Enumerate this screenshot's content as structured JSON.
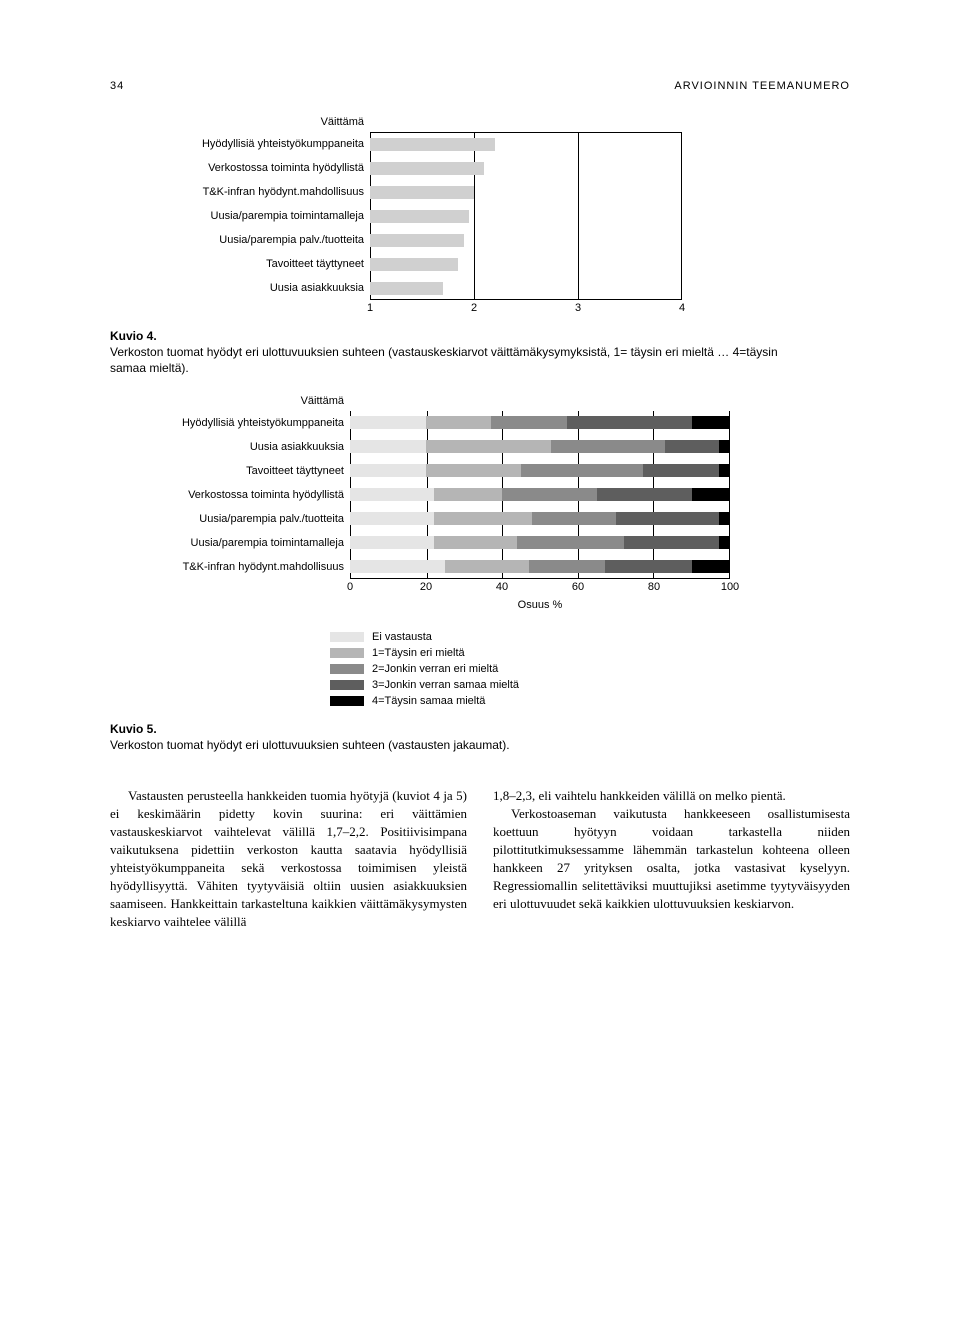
{
  "page_number": "34",
  "running_head": "ARVIOINNIN TEEMANUMERO",
  "kuvio4": {
    "type": "bar",
    "header_label": "Väittämä",
    "categories": [
      "Hyödyllisiä yhteistyökumppaneita",
      "Verkostossa toiminta hyödyllistä",
      "T&K-infran hyödynt.mahdollisuus",
      "Uusia/parempia toimintamalleja",
      "Uusia/parempia palv./tuotteita",
      "Tavoitteet täyttyneet",
      "Uusia asiakkuuksia"
    ],
    "values": [
      2.2,
      2.1,
      2.0,
      1.95,
      1.9,
      1.85,
      1.7
    ],
    "xlim": [
      1,
      4
    ],
    "xticks": [
      1,
      2,
      3,
      4
    ],
    "bar_color": "#d0d0d0",
    "grid_color": "#000000",
    "caption_label": "Kuvio 4.",
    "caption_text": "Verkoston tuomat hyödyt eri ulottuvuuksien suhteen (vastauskeskiarvot väittämäkysymyksistä, 1= täysin eri mieltä … 4=täysin samaa mieltä)."
  },
  "kuvio5": {
    "type": "stacked_bar",
    "header_label": "Väittämä",
    "categories": [
      "Hyödyllisiä yhteistyökumppaneita",
      "Uusia asiakkuuksia",
      "Tavoitteet täyttyneet",
      "Verkostossa toiminta hyödyllistä",
      "Uusia/parempia palv./tuotteita",
      "Uusia/parempia toimintamalleja",
      "T&K-infran hyödynt.mahdollisuus"
    ],
    "segments": [
      [
        20,
        17,
        20,
        33,
        10
      ],
      [
        20,
        33,
        30,
        14,
        3
      ],
      [
        20,
        25,
        32,
        20,
        3
      ],
      [
        22,
        18,
        25,
        25,
        10
      ],
      [
        22,
        26,
        22,
        27,
        3
      ],
      [
        22,
        22,
        28,
        25,
        3
      ],
      [
        25,
        22,
        20,
        23,
        10
      ]
    ],
    "seg_colors": [
      "#e5e5e5",
      "#b5b5b5",
      "#8a8a8a",
      "#5e5e5e",
      "#000000"
    ],
    "xlim": [
      0,
      100
    ],
    "xticks": [
      0,
      20,
      40,
      60,
      80,
      100
    ],
    "xlabel": "Osuus %",
    "legend": [
      "Ei vastausta",
      "1=Täysin eri mieltä",
      "2=Jonkin verran eri mieltä",
      "3=Jonkin verran samaa mieltä",
      "4=Täysin samaa mieltä"
    ],
    "caption_label": "Kuvio 5.",
    "caption_text": "Verkoston tuomat hyödyt eri ulottuvuuksien suhteen (vastausten jakaumat)."
  },
  "body_left": "Vastausten perusteella hankkeiden tuomia hyötyjä (kuviot 4 ja 5) ei keskimäärin pidetty kovin suurina: eri väittämien vastauskeskiarvot vaihtelevat välillä 1,7–2,2. Positiivisimpana vaikutuksena pidettiin verkoston kautta saatavia hyödyllisiä yhteistyökumppaneita sekä verkostossa toimimisen yleistä hyödyllisyyttä. Vähiten tyytyväisiä oltiin uusien asiakkuuksien saamiseen. Hankkeittain tarkasteltuna kaikkien väittämäkysymysten keskiarvo vaihtelee välillä",
  "body_right": "1,8–2,3, eli vaihtelu hankkeiden välillä on melko pientä.\n\nVerkostoaseman vaikutusta hankkeeseen osallistumisesta koettuun hyötyyn voidaan tarkastella niiden pilottitutkimuksessamme lähemmän tarkastelun kohteena olleen hankkeen 27 yrityksen osalta, jotka vastasivat kyselyyn. Regressiomallin selitettäviksi muuttujiksi asetimme tyytyväisyyden eri ulottuvuudet sekä kaikkien ulottuvuuksien keskiarvon."
}
